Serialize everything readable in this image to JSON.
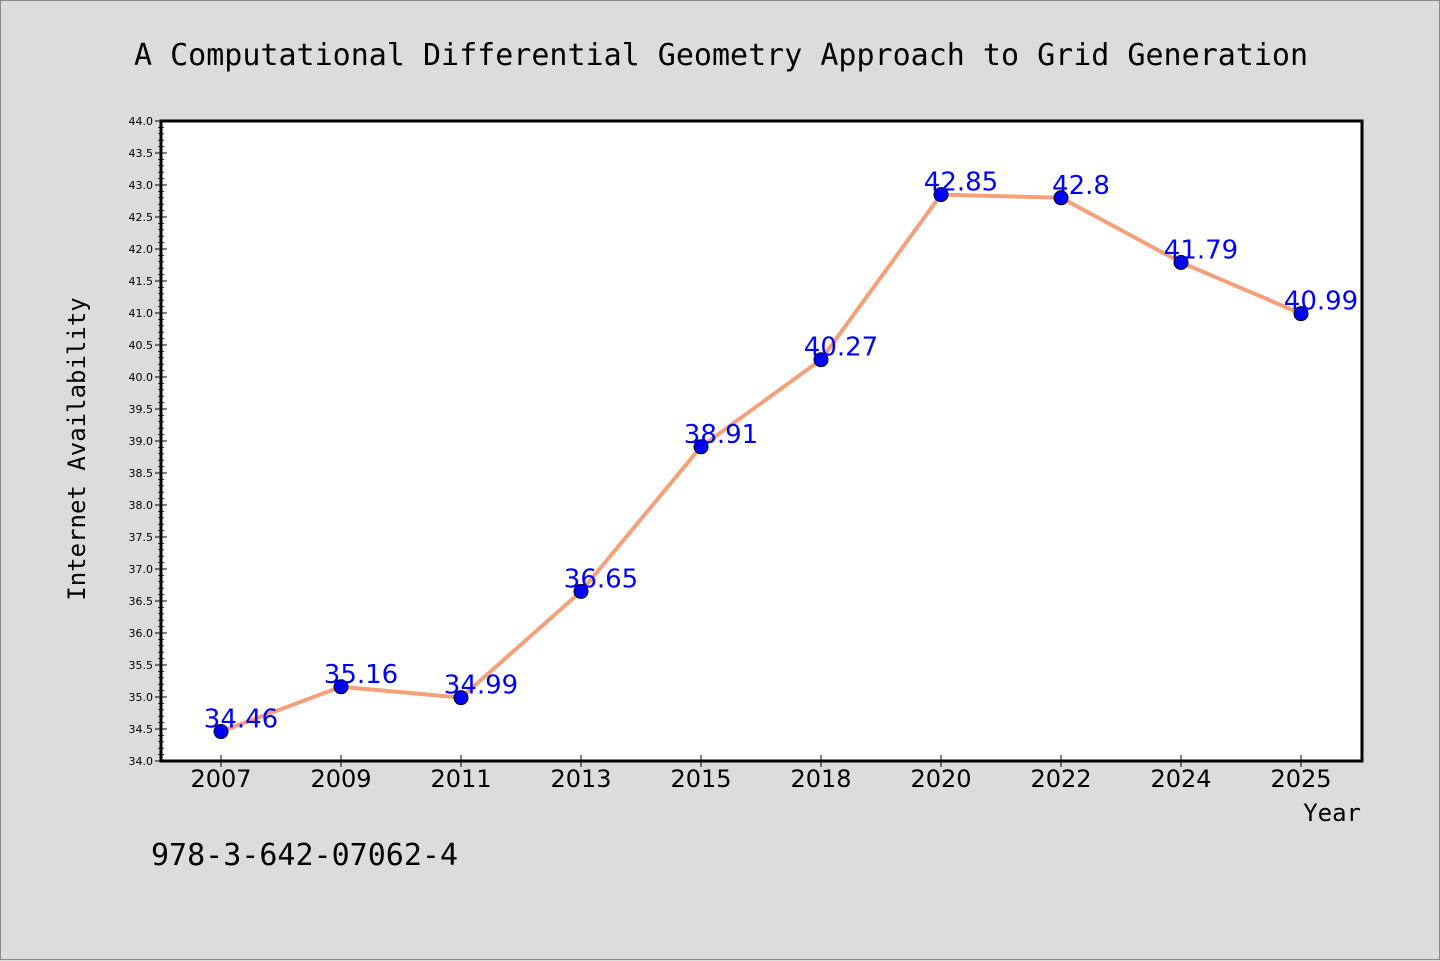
{
  "chart_data": {
    "type": "line",
    "title": "A Computational Differential Geometry Approach to Grid Generation",
    "xlabel": "Year",
    "ylabel": "Internet Availability",
    "categories": [
      "2007",
      "2009",
      "2011",
      "2013",
      "2015",
      "2018",
      "2020",
      "2022",
      "2024",
      "2025"
    ],
    "series": [
      {
        "values": [
          34.46,
          35.16,
          34.99,
          36.65,
          38.91,
          40.27,
          42.85,
          42.8,
          41.79,
          40.99
        ],
        "data_labels": [
          "34.46",
          "35.16",
          "34.99",
          "36.65",
          "38.91",
          "40.27",
          "42.85",
          "42.8",
          "41.79",
          "40.99"
        ]
      }
    ],
    "ylim": [
      34.0,
      44.0
    ],
    "yticks": [
      "34.0",
      "34.5",
      "35.0",
      "35.5",
      "36.0",
      "36.5",
      "37.0",
      "37.5",
      "38.0",
      "38.5",
      "39.0",
      "39.5",
      "40.0",
      "40.5",
      "41.0",
      "41.5",
      "42.0",
      "42.5",
      "43.0",
      "43.5",
      "44.0"
    ],
    "grid": false,
    "legend": "none",
    "colors": {
      "line": "#f4a07a",
      "marker": "#0000ff",
      "label": "#0000ff",
      "background": "#dcdcdc",
      "plot_background": "#ffffff"
    }
  },
  "caption": "978-3-642-07062-4"
}
